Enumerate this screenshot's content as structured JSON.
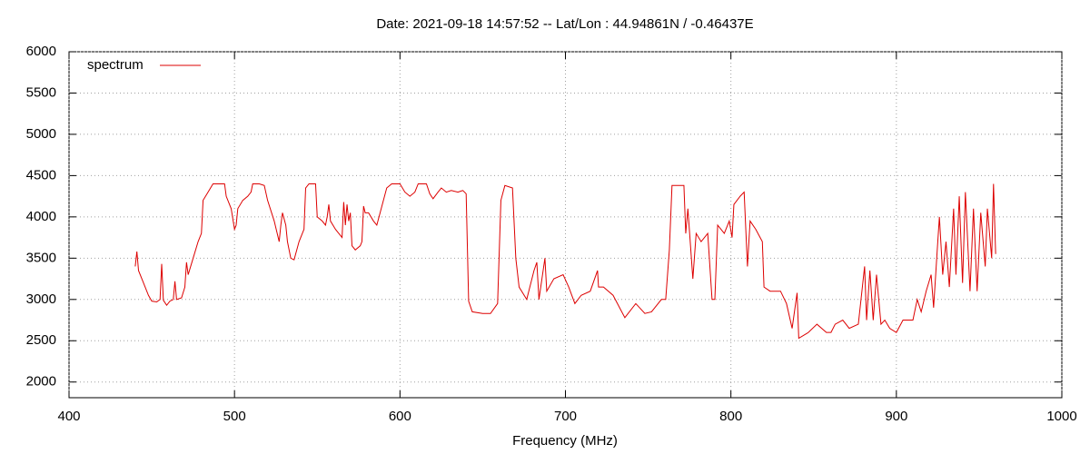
{
  "chart_data": {
    "type": "line",
    "title": "Date: 2021-09-18 14:57:52  --  Lat/Lon : 44.94861N / -0.46437E",
    "xlabel": "Frequency (MHz)",
    "xlim": [
      400,
      1000
    ],
    "xticks": [
      400,
      500,
      600,
      700,
      800,
      900,
      1000
    ],
    "ylim": [
      1810,
      6000
    ],
    "yticks": [
      2000,
      2500,
      3000,
      3500,
      4000,
      4500,
      5000,
      5500,
      6000
    ],
    "grid": true,
    "legend": "upper left",
    "x": [
      440,
      441,
      442,
      445,
      448,
      450,
      453,
      455,
      456,
      457,
      459,
      461,
      463,
      464,
      465,
      468,
      470,
      471,
      472,
      475,
      478,
      480,
      481,
      484,
      487,
      490,
      494,
      495,
      498,
      500,
      501,
      502,
      505,
      508,
      510,
      511,
      515,
      518,
      520,
      524,
      527,
      528,
      529,
      531,
      532,
      534,
      536,
      539,
      542,
      543,
      545,
      549,
      550,
      553,
      555,
      556,
      557,
      558,
      561,
      565,
      566,
      567,
      568,
      569,
      570,
      571,
      573,
      576,
      577,
      578,
      579,
      581,
      584,
      586,
      588,
      590,
      592,
      595,
      600,
      603,
      606,
      609,
      611,
      616,
      618,
      620,
      623,
      625,
      628,
      631,
      635,
      638,
      640,
      641.5,
      643.7,
      650,
      654.7,
      659,
      661,
      663.4,
      668,
      670,
      672,
      676.6,
      681,
      682.7,
      684,
      687.6,
      688.7,
      693,
      698.6,
      702,
      705.7,
      709.5,
      715,
      719.4,
      720,
      723,
      728.8,
      735.9,
      742.5,
      748,
      752,
      758,
      760.6,
      762.8,
      764.4,
      771.6,
      772.7,
      774,
      777,
      779,
      782,
      786,
      788.6,
      790.3,
      792,
      796,
      799,
      800.7,
      801.8,
      805.6,
      808,
      810,
      811.6,
      815,
      819,
      820,
      823.7,
      830,
      833.6,
      837,
      840,
      841,
      846.8,
      852,
      857.7,
      860.5,
      863,
      867.6,
      871.5,
      877,
      880.8,
      882,
      884,
      886,
      888,
      890.7,
      893,
      896,
      900,
      904,
      910,
      912.6,
      915,
      918,
      921,
      922.5,
      924.7,
      926,
      928,
      930,
      932,
      934.6,
      936,
      938,
      940,
      941.7,
      944.5,
      946.6,
      948.8,
      951,
      953.7,
      955,
      957.6,
      958.7,
      960
    ],
    "series": [
      {
        "name": "spectrum",
        "color": "#dd0000",
        "values": [
          3400,
          3580,
          3350,
          3200,
          3050,
          2980,
          2970,
          3000,
          3430,
          2990,
          2930,
          2980,
          3000,
          3220,
          3000,
          3020,
          3150,
          3450,
          3300,
          3500,
          3700,
          3800,
          4200,
          4300,
          4400,
          4400,
          4400,
          4250,
          4100,
          3850,
          3900,
          4100,
          4200,
          4250,
          4300,
          4400,
          4400,
          4380,
          4200,
          3950,
          3700,
          3900,
          4050,
          3900,
          3700,
          3500,
          3480,
          3700,
          3850,
          4350,
          4400,
          4400,
          4000,
          3950,
          3900,
          4000,
          4150,
          3950,
          3850,
          3750,
          4180,
          3900,
          4150,
          3950,
          4050,
          3650,
          3600,
          3650,
          3700,
          4130,
          4050,
          4050,
          3950,
          3900,
          4050,
          4200,
          4350,
          4400,
          4400,
          4300,
          4250,
          4300,
          4400,
          4400,
          4280,
          4220,
          4300,
          4350,
          4300,
          4320,
          4300,
          4320,
          4280,
          2980,
          2850,
          2830,
          2830,
          2950,
          4200,
          4380,
          4350,
          3500,
          3150,
          3000,
          3350,
          3450,
          3000,
          3500,
          3100,
          3250,
          3300,
          3150,
          2950,
          3050,
          3100,
          3350,
          3150,
          3150,
          3050,
          2780,
          2950,
          2830,
          2850,
          3000,
          3000,
          3600,
          4380,
          4380,
          3800,
          4100,
          3250,
          3800,
          3700,
          3800,
          3000,
          3000,
          3900,
          3800,
          3950,
          3750,
          4150,
          4250,
          4300,
          3400,
          3950,
          3850,
          3700,
          3150,
          3100,
          3100,
          2950,
          2650,
          3080,
          2530,
          2600,
          2700,
          2600,
          2600,
          2700,
          2750,
          2650,
          2700,
          3400,
          2750,
          3350,
          2750,
          3300,
          2700,
          2750,
          2650,
          2600,
          2750,
          2750,
          3000,
          2850,
          3100,
          3300,
          2900,
          3600,
          4000,
          3300,
          3700,
          3150,
          4100,
          3300,
          4250,
          3200,
          4300,
          3100,
          4100,
          3100,
          4050,
          3400,
          4100,
          3500,
          4400,
          3550
        ]
      }
    ]
  }
}
